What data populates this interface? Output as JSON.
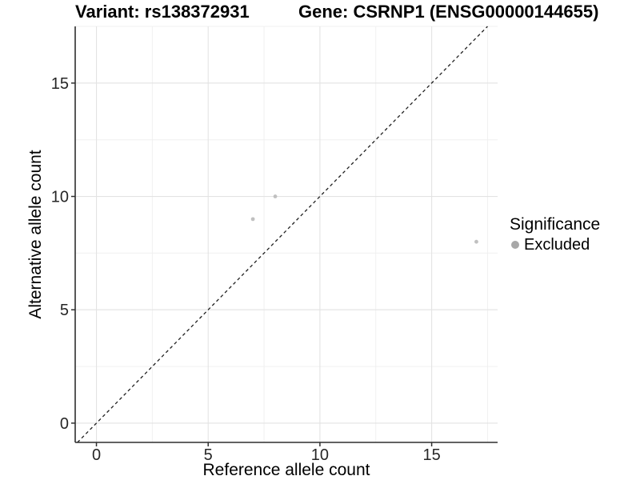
{
  "titles": {
    "variant": "Variant: rs138372931",
    "gene": "Gene: CSRNP1 (ENSG00000144655)"
  },
  "legend": {
    "title": "Significance",
    "items": [
      {
        "label": "Excluded",
        "dot_color": "#a8a8a8",
        "icon": "circle-dot-icon"
      }
    ]
  },
  "chart_data": {
    "type": "scatter",
    "title_left": "Variant: rs138372931",
    "title_right": "Gene: CSRNP1 (ENSG00000144655)",
    "xlabel": "Reference allele count",
    "ylabel": "Alternative allele count",
    "xlim": [
      -0.95,
      17.95
    ],
    "ylim": [
      -0.85,
      17.5
    ],
    "x_ticks": [
      0,
      5,
      10,
      15
    ],
    "y_ticks": [
      0,
      5,
      10,
      15
    ],
    "x_minor_ticks": [
      2.5,
      7.5,
      12.5,
      17.5
    ],
    "y_minor_ticks": [
      2.5,
      7.5,
      12.5,
      17.5
    ],
    "grid": "major+minor",
    "legend_position": "right",
    "series": [
      {
        "name": "Excluded",
        "color": "#c0c0c0",
        "marker": "circle",
        "points": [
          {
            "x": 7,
            "y": 9
          },
          {
            "x": 8,
            "y": 10
          },
          {
            "x": 17,
            "y": 8
          }
        ]
      }
    ],
    "reference_line": {
      "kind": "identity",
      "equation": "y = x",
      "style": "dashed",
      "color": "#1f1f1f"
    }
  },
  "colors": {
    "background": "#ffffff",
    "axis_line": "#2f2f2f",
    "tick_mark": "#2f2f2f",
    "tick_label": "#262626",
    "grid_major": "#e3e3e3",
    "grid_minor": "#f0f0f0",
    "title": "#000000"
  }
}
